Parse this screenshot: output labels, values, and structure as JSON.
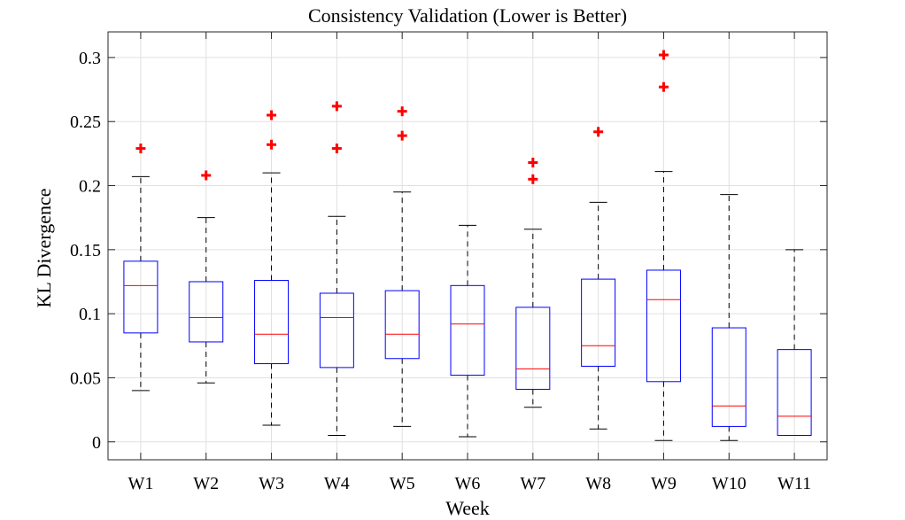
{
  "chart_data": {
    "type": "boxplot",
    "title": "Consistency Validation (Lower is Better)",
    "xlabel": "Week",
    "ylabel": "KL Divergence",
    "ylim": [
      -0.014,
      0.32
    ],
    "yticks": [
      0,
      0.05,
      0.1,
      0.15,
      0.2,
      0.25,
      0.3
    ],
    "ytick_labels": [
      "0",
      "0.05",
      "0.1",
      "0.15",
      "0.2",
      "0.25",
      "0.3"
    ],
    "grid": true,
    "categories": [
      "W1",
      "W2",
      "W3",
      "W4",
      "W5",
      "W6",
      "W7",
      "W8",
      "W9",
      "W10",
      "W11"
    ],
    "boxes": [
      {
        "whisker_low": 0.04,
        "q1": 0.085,
        "median": 0.122,
        "q3": 0.141,
        "whisker_high": 0.207,
        "outliers": [
          0.229
        ]
      },
      {
        "whisker_low": 0.046,
        "q1": 0.078,
        "median": 0.097,
        "q3": 0.125,
        "whisker_high": 0.175,
        "outliers": [
          0.208
        ]
      },
      {
        "whisker_low": 0.013,
        "q1": 0.061,
        "median": 0.084,
        "q3": 0.126,
        "whisker_high": 0.21,
        "outliers": [
          0.232,
          0.255
        ]
      },
      {
        "whisker_low": 0.005,
        "q1": 0.058,
        "median": 0.097,
        "q3": 0.116,
        "whisker_high": 0.176,
        "outliers": [
          0.229,
          0.262
        ]
      },
      {
        "whisker_low": 0.012,
        "q1": 0.065,
        "median": 0.084,
        "q3": 0.118,
        "whisker_high": 0.195,
        "outliers": [
          0.239,
          0.258
        ]
      },
      {
        "whisker_low": 0.004,
        "q1": 0.052,
        "median": 0.092,
        "q3": 0.122,
        "whisker_high": 0.169,
        "outliers": []
      },
      {
        "whisker_low": 0.027,
        "q1": 0.041,
        "median": 0.057,
        "q3": 0.105,
        "whisker_high": 0.166,
        "outliers": [
          0.205,
          0.218
        ]
      },
      {
        "whisker_low": 0.01,
        "q1": 0.059,
        "median": 0.075,
        "q3": 0.127,
        "whisker_high": 0.187,
        "outliers": [
          0.242
        ]
      },
      {
        "whisker_low": 0.001,
        "q1": 0.047,
        "median": 0.111,
        "q3": 0.134,
        "whisker_high": 0.211,
        "outliers": [
          0.277,
          0.302
        ]
      },
      {
        "whisker_low": 0.001,
        "q1": 0.012,
        "median": 0.028,
        "q3": 0.089,
        "whisker_high": 0.193,
        "outliers": []
      },
      {
        "whisker_low": 0.005,
        "q1": 0.005,
        "median": 0.02,
        "q3": 0.072,
        "whisker_high": 0.15,
        "outliers": []
      }
    ],
    "colors": {
      "box": "#0000ff",
      "median": "#ff0000",
      "whisker": "#000000",
      "outlier": "#ff0000",
      "grid": "#e0e0e0",
      "axis": "#262626"
    }
  }
}
